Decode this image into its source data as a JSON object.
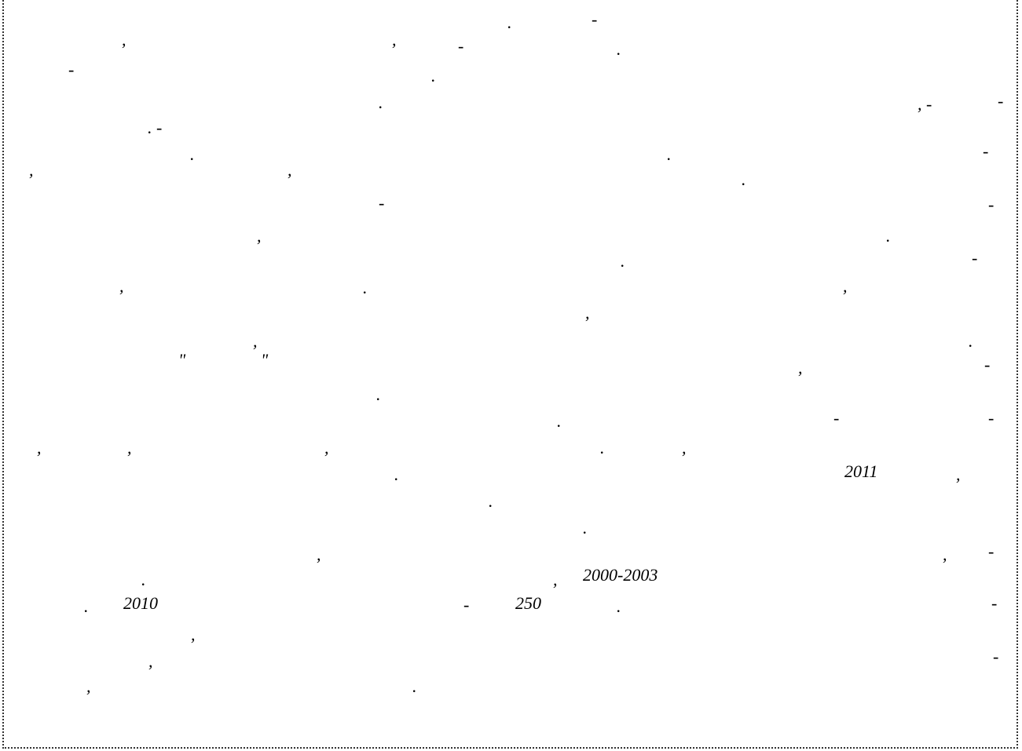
{
  "marks": {
    "dot": ".",
    "comma": ",",
    "dash": "-",
    "dot_dash": ". -",
    "comma_dash": ", -",
    "quote": "\""
  },
  "numbers": {
    "year_2011": "2011",
    "range_2000_2003": "2000-2003",
    "year_2010": "2010",
    "count_250": "250"
  },
  "colors": {
    "border": "#333333",
    "text": "#000000",
    "background": "#ffffff"
  }
}
